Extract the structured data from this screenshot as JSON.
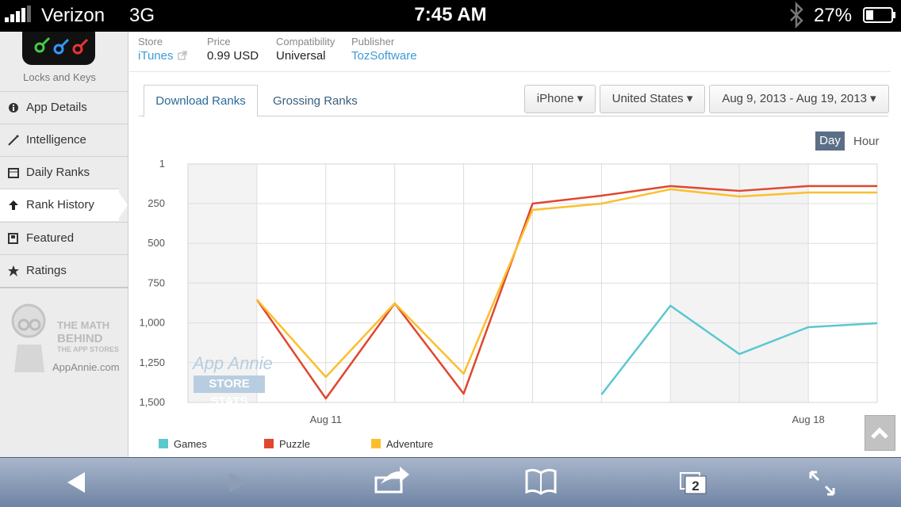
{
  "status_bar": {
    "carrier": "Verizon",
    "network": "3G",
    "time": "7:45 AM",
    "battery": "27%"
  },
  "app": {
    "name": "Locks and Keys",
    "info": [
      {
        "label": "Store",
        "value": "iTunes"
      },
      {
        "label": "Price",
        "value": "0.99 USD"
      },
      {
        "label": "Compatibility",
        "value": "Universal"
      },
      {
        "label": "Publisher",
        "value": "TozSoftware"
      }
    ]
  },
  "nav": [
    "App Details",
    "Intelligence",
    "Daily Ranks",
    "Rank History",
    "Featured",
    "Ratings"
  ],
  "watermark": {
    "sidebar": [
      "THE MATH",
      "BEHIND",
      "THE APP STORES",
      "AppAnnie.com"
    ],
    "chart": [
      "App Annie",
      "STORE STATS"
    ]
  },
  "tabs": [
    "Download Ranks",
    "Grossing Ranks"
  ],
  "filters": [
    "iPhone",
    "United States",
    "Aug 9, 2013 - Aug 19, 2013"
  ],
  "granularity": [
    "Day",
    "Hour"
  ],
  "toolbar": {
    "tab_count": 2
  },
  "chart_data": {
    "type": "line",
    "categories": [
      null,
      null,
      "Aug 11",
      null,
      null,
      null,
      null,
      null,
      null,
      "Aug 18",
      null
    ],
    "ylim": [
      1,
      1500
    ],
    "y_inverted": true,
    "yticks": [
      1,
      250,
      500,
      750,
      {
        "value": 1000,
        "label": "1,000"
      },
      {
        "value": 1250,
        "label": "1,250"
      },
      {
        "value": 1500,
        "label": "1,500"
      }
    ],
    "grid": true,
    "series": [
      {
        "name": "Games",
        "color": "#5bc8d0",
        "values": [
          null,
          null,
          null,
          null,
          null,
          null,
          1450,
          892,
          1196,
          1027,
          1002
        ]
      },
      {
        "name": "Puzzle",
        "color": "#e0472e",
        "values": [
          null,
          853,
          1475,
          877,
          1445,
          250,
          200,
          140,
          170,
          140,
          140
        ]
      },
      {
        "name": "Adventure",
        "color": "#fbbf2d",
        "values": [
          null,
          853,
          1340,
          877,
          1320,
          290,
          250,
          160,
          205,
          180,
          180
        ]
      }
    ]
  }
}
